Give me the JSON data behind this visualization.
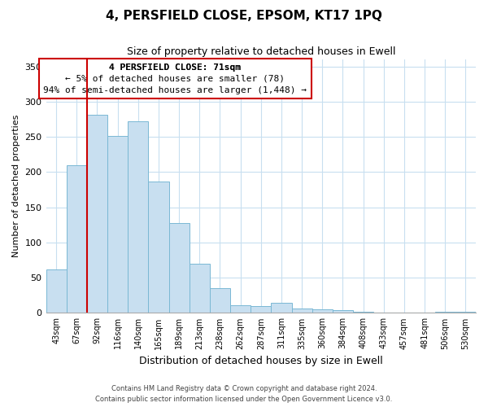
{
  "title": "4, PERSFIELD CLOSE, EPSOM, KT17 1PQ",
  "subtitle": "Size of property relative to detached houses in Ewell",
  "xlabel": "Distribution of detached houses by size in Ewell",
  "ylabel": "Number of detached properties",
  "bar_labels": [
    "43sqm",
    "67sqm",
    "92sqm",
    "116sqm",
    "140sqm",
    "165sqm",
    "189sqm",
    "213sqm",
    "238sqm",
    "262sqm",
    "287sqm",
    "311sqm",
    "335sqm",
    "360sqm",
    "384sqm",
    "408sqm",
    "433sqm",
    "457sqm",
    "481sqm",
    "506sqm",
    "530sqm"
  ],
  "bar_heights": [
    62,
    210,
    281,
    251,
    272,
    187,
    128,
    70,
    35,
    11,
    10,
    14,
    6,
    5,
    4,
    2,
    1,
    0,
    0,
    2,
    2
  ],
  "bar_color": "#c8dff0",
  "bar_edge_color": "#7ab8d4",
  "vline_x": 1.5,
  "vline_color": "#cc0000",
  "ylim": [
    0,
    360
  ],
  "yticks": [
    0,
    50,
    100,
    150,
    200,
    250,
    300,
    350
  ],
  "annotation_title": "4 PERSFIELD CLOSE: 71sqm",
  "annotation_line1": "← 5% of detached houses are smaller (78)",
  "annotation_line2": "94% of semi-detached houses are larger (1,448) →",
  "annotation_box_color": "#ffffff",
  "annotation_box_edge": "#cc0000",
  "footer1": "Contains HM Land Registry data © Crown copyright and database right 2024.",
  "footer2": "Contains public sector information licensed under the Open Government Licence v3.0.",
  "background_color": "#ffffff",
  "grid_color": "#c8dff0"
}
